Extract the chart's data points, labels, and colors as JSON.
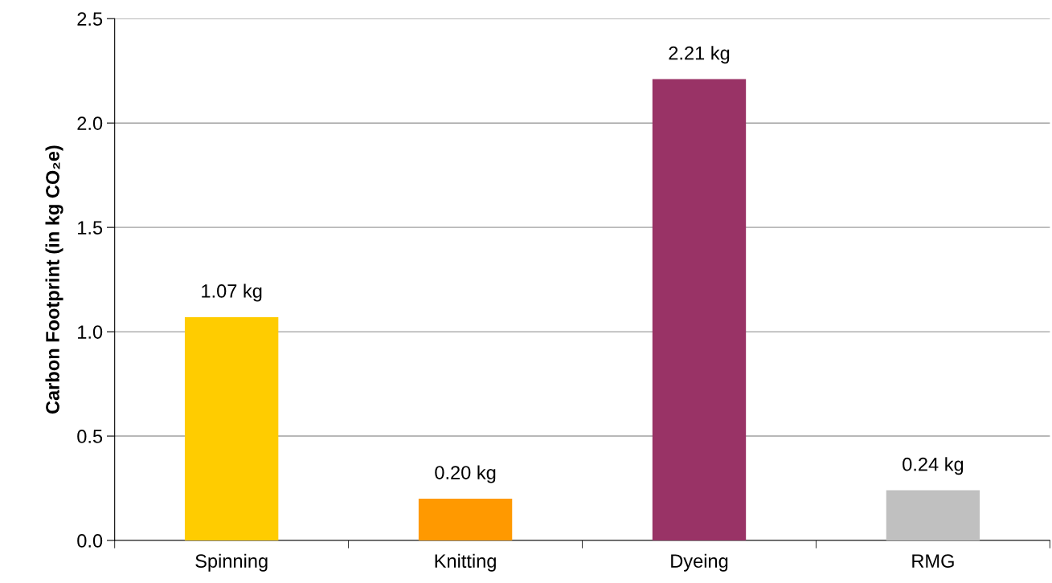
{
  "chart_data": {
    "type": "bar",
    "ylabel": "Carbon Footprint (in kg CO₂e)",
    "categories": [
      "Spinning",
      "Knitting",
      "Dyeing",
      "RMG"
    ],
    "values": [
      1.07,
      0.2,
      2.21,
      0.24
    ],
    "colors": [
      "#ffcc00",
      "#ff9900",
      "#993366",
      "#c0c0c0"
    ],
    "value_labels": [
      "1.07 kg",
      "0.20 kg",
      "2.21 kg",
      "0.24 kg"
    ],
    "ylim": [
      0,
      2.5
    ],
    "yticks": [
      {
        "value": 0,
        "label": "0.0"
      },
      {
        "value": 0.5,
        "label": "0.5"
      },
      {
        "value": 1,
        "label": "1.0"
      },
      {
        "value": 1.5,
        "label": "1.5"
      },
      {
        "value": 2,
        "label": "2.0"
      },
      {
        "value": 2.5,
        "label": "2.5"
      }
    ],
    "grid": "y"
  }
}
